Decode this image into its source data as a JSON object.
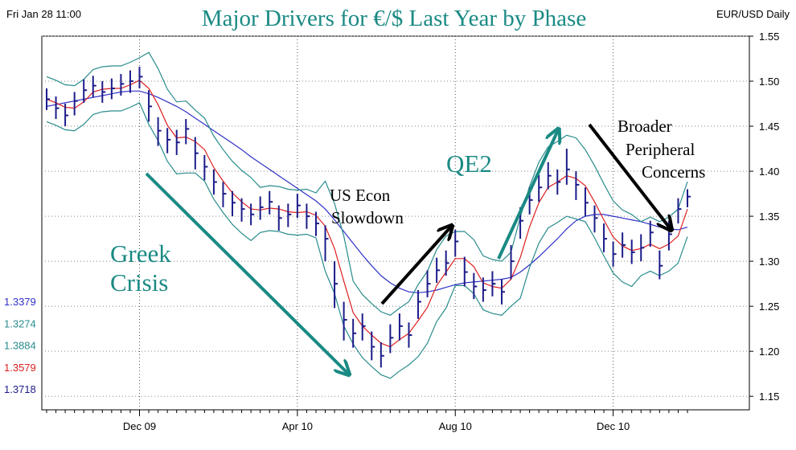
{
  "chart_data": {
    "type": "ohlc",
    "title": "Major Drivers for €/$ Last Year by Phase",
    "timestamp": "Fri Jan 28 11:00",
    "instrument": "EUR/USD Daily",
    "categories": [
      null,
      null,
      null,
      null,
      null,
      null,
      null,
      null,
      null,
      null,
      "Dec 09",
      null,
      null,
      null,
      null,
      null,
      null,
      null,
      null,
      null,
      null,
      null,
      null,
      null,
      null,
      null,
      null,
      "Apr 10",
      null,
      null,
      null,
      null,
      null,
      null,
      null,
      null,
      null,
      null,
      null,
      null,
      null,
      null,
      null,
      null,
      "Aug 10",
      null,
      null,
      null,
      null,
      null,
      null,
      null,
      null,
      null,
      null,
      null,
      null,
      null,
      null,
      null,
      null,
      "Dec 10",
      null,
      null,
      null,
      null,
      null,
      null,
      null,
      null
    ],
    "ylim": [
      1.135,
      1.55
    ],
    "yticks": [
      1.15,
      {
        "value": 1.2,
        "label": "1.20"
      },
      1.25,
      {
        "value": 1.3,
        "label": "1.30"
      },
      1.35,
      {
        "value": 1.4,
        "label": "1.40"
      },
      1.45,
      {
        "value": 1.5,
        "label": "1.50"
      },
      1.55
    ],
    "grid": true,
    "bars": {
      "color": "#1c1c8a",
      "high": [
        1.492,
        1.483,
        1.475,
        1.488,
        1.502,
        1.506,
        1.5,
        1.503,
        1.508,
        1.512,
        1.516,
        1.49,
        1.46,
        1.448,
        1.446,
        1.458,
        1.438,
        1.418,
        1.402,
        1.388,
        1.378,
        1.37,
        1.364,
        1.372,
        1.378,
        1.362,
        1.364,
        1.375,
        1.364,
        1.355,
        1.34,
        1.3,
        1.255,
        1.236,
        1.242,
        1.222,
        1.21,
        1.23,
        1.242,
        1.232,
        1.268,
        1.29,
        1.304,
        1.312,
        1.335,
        1.305,
        1.287,
        1.282,
        1.289,
        1.28,
        1.318,
        1.36,
        1.382,
        1.396,
        1.41,
        1.402,
        1.425,
        1.4,
        1.382,
        1.362,
        1.342,
        1.322,
        1.332,
        1.324,
        1.33,
        1.345,
        1.312,
        1.345,
        1.37,
        1.38
      ],
      "low": [
        1.468,
        1.458,
        1.45,
        1.462,
        1.476,
        1.482,
        1.476,
        1.48,
        1.484,
        1.487,
        1.492,
        1.455,
        1.428,
        1.42,
        1.418,
        1.43,
        1.402,
        1.39,
        1.374,
        1.36,
        1.35,
        1.344,
        1.34,
        1.346,
        1.352,
        1.334,
        1.338,
        1.348,
        1.336,
        1.328,
        1.3,
        1.248,
        1.212,
        1.204,
        1.212,
        1.19,
        1.182,
        1.198,
        1.212,
        1.204,
        1.236,
        1.26,
        1.276,
        1.284,
        1.305,
        1.272,
        1.258,
        1.255,
        1.261,
        1.252,
        1.28,
        1.325,
        1.352,
        1.366,
        1.38,
        1.374,
        1.385,
        1.368,
        1.35,
        1.332,
        1.31,
        1.294,
        1.304,
        1.297,
        1.3,
        1.316,
        1.28,
        1.312,
        1.342,
        1.36
      ],
      "close": [
        1.48,
        1.47,
        1.462,
        1.478,
        1.49,
        1.495,
        1.488,
        1.492,
        1.497,
        1.5,
        1.505,
        1.472,
        1.445,
        1.435,
        1.432,
        1.447,
        1.42,
        1.405,
        1.388,
        1.375,
        1.365,
        1.358,
        1.352,
        1.36,
        1.366,
        1.348,
        1.352,
        1.362,
        1.35,
        1.342,
        1.325,
        1.275,
        1.235,
        1.22,
        1.228,
        1.205,
        1.195,
        1.215,
        1.228,
        1.218,
        1.255,
        1.275,
        1.29,
        1.298,
        1.322,
        1.288,
        1.272,
        1.268,
        1.275,
        1.266,
        1.3,
        1.345,
        1.368,
        1.382,
        1.395,
        1.388,
        1.402,
        1.385,
        1.365,
        1.348,
        1.325,
        1.308,
        1.318,
        1.31,
        1.315,
        1.332,
        1.295,
        1.33,
        1.358,
        1.3718
      ]
    },
    "lines": [
      {
        "color": "#3030c8",
        "values": [
          1.472,
          1.474,
          1.476,
          1.478,
          1.48,
          1.482,
          1.484,
          1.486,
          1.488,
          1.489,
          1.489,
          1.486,
          1.482,
          1.477,
          1.472,
          1.466,
          1.459,
          1.452,
          1.445,
          1.438,
          1.431,
          1.424,
          1.416,
          1.409,
          1.402,
          1.395,
          1.388,
          1.381,
          1.374,
          1.367,
          1.358,
          1.346,
          1.333,
          1.32,
          1.307,
          1.295,
          1.284,
          1.276,
          1.27,
          1.266,
          1.265,
          1.266,
          1.268,
          1.271,
          1.274,
          1.276,
          1.277,
          1.278,
          1.279,
          1.28,
          1.282,
          1.288,
          1.296,
          1.305,
          1.315,
          1.325,
          1.336,
          1.345,
          1.35,
          1.352,
          1.352,
          1.35,
          1.348,
          1.346,
          1.344,
          1.341,
          1.338,
          1.336,
          1.335,
          1.3379
        ]
      },
      {
        "color": "#2a8c8c",
        "values": [
          1.455,
          1.451,
          1.446,
          1.445,
          1.452,
          1.463,
          1.466,
          1.467,
          1.467,
          1.471,
          1.476,
          1.452,
          1.434,
          1.411,
          1.397,
          1.398,
          1.398,
          1.389,
          1.369,
          1.354,
          1.341,
          1.331,
          1.323,
          1.332,
          1.334,
          1.333,
          1.33,
          1.329,
          1.33,
          1.326,
          1.289,
          1.264,
          1.228,
          1.208,
          1.193,
          1.183,
          1.174,
          1.17,
          1.178,
          1.185,
          1.194,
          1.209,
          1.233,
          1.248,
          1.273,
          1.273,
          1.264,
          1.246,
          1.242,
          1.24,
          1.25,
          1.259,
          1.293,
          1.32,
          1.337,
          1.343,
          1.35,
          1.347,
          1.344,
          1.326,
          1.306,
          1.287,
          1.277,
          1.272,
          1.284,
          1.289,
          1.284,
          1.289,
          1.298,
          1.3274
        ]
      },
      {
        "color": "#2a8c8c",
        "values": [
          1.505,
          1.501,
          1.496,
          1.495,
          1.502,
          1.513,
          1.516,
          1.517,
          1.517,
          1.521,
          1.526,
          1.532,
          1.514,
          1.491,
          1.477,
          1.478,
          1.468,
          1.459,
          1.439,
          1.424,
          1.411,
          1.401,
          1.393,
          1.382,
          1.384,
          1.383,
          1.38,
          1.379,
          1.38,
          1.376,
          1.389,
          1.364,
          1.328,
          1.278,
          1.263,
          1.253,
          1.244,
          1.24,
          1.248,
          1.255,
          1.274,
          1.289,
          1.313,
          1.328,
          1.333,
          1.333,
          1.324,
          1.306,
          1.302,
          1.3,
          1.31,
          1.349,
          1.383,
          1.41,
          1.427,
          1.433,
          1.44,
          1.437,
          1.424,
          1.406,
          1.386,
          1.367,
          1.357,
          1.352,
          1.344,
          1.349,
          1.344,
          1.349,
          1.358,
          1.3884
        ]
      },
      {
        "color": "#dd2020",
        "values": [
          1.48,
          1.476,
          1.471,
          1.47,
          1.477,
          1.488,
          1.491,
          1.492,
          1.492,
          1.496,
          1.501,
          1.492,
          1.474,
          1.451,
          1.437,
          1.438,
          1.433,
          1.424,
          1.404,
          1.389,
          1.376,
          1.366,
          1.358,
          1.357,
          1.359,
          1.358,
          1.355,
          1.354,
          1.355,
          1.351,
          1.339,
          1.314,
          1.278,
          1.243,
          1.228,
          1.218,
          1.209,
          1.205,
          1.213,
          1.22,
          1.234,
          1.249,
          1.273,
          1.288,
          1.303,
          1.303,
          1.294,
          1.276,
          1.272,
          1.27,
          1.28,
          1.304,
          1.338,
          1.365,
          1.382,
          1.388,
          1.395,
          1.392,
          1.384,
          1.366,
          1.346,
          1.327,
          1.317,
          1.312,
          1.314,
          1.319,
          1.314,
          1.319,
          1.328,
          1.3579
        ]
      }
    ],
    "annotations": [
      {
        "lines": [
          "Greek",
          "Crisis"
        ],
        "color": "#1a8a84"
      },
      {
        "lines": [
          "US Econ",
          "Slowdown"
        ],
        "color": "#000000"
      },
      {
        "lines": [
          "QE2"
        ],
        "color": "#1a8a84"
      },
      {
        "lines": [
          "Broader",
          "Peripheral",
          "Concerns"
        ],
        "color": "#000000"
      }
    ]
  }
}
